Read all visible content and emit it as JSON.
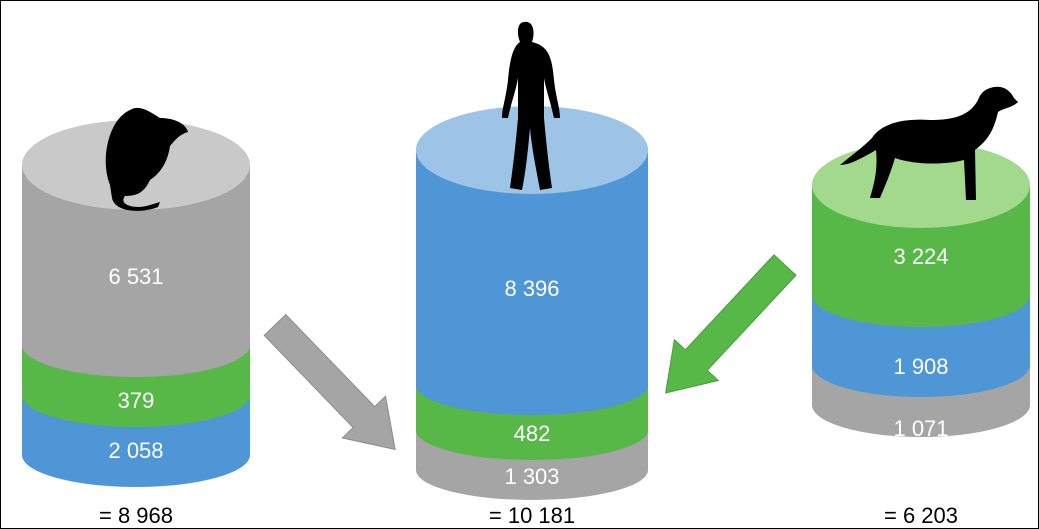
{
  "cylinders": [
    {
      "segments": [
        "6 531",
        "379",
        "2 058"
      ],
      "total": "= 8 968"
    },
    {
      "segments": [
        "8 396",
        "482",
        "1 303"
      ],
      "total": "= 10 181"
    },
    {
      "segments": [
        "3 224",
        "1 908",
        "1 071"
      ],
      "total": "= 6 203"
    }
  ]
}
